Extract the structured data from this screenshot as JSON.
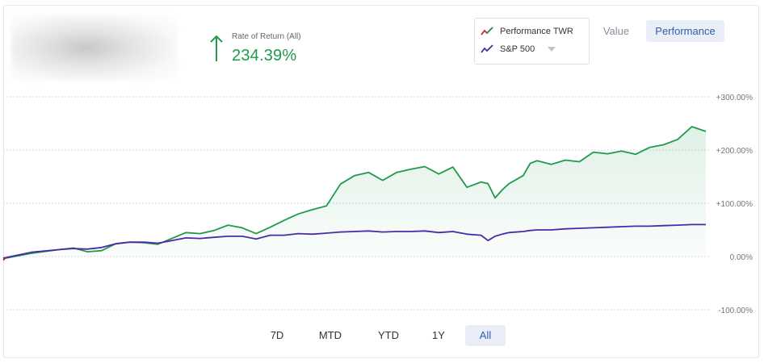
{
  "header": {
    "rate_label": "Rate of Return (All)",
    "rate_value": "234.39%",
    "rate_direction_icon": "arrow-up-icon",
    "rate_color": "#1f9a4c"
  },
  "legend": {
    "items": [
      {
        "label": "Performance TWR",
        "icon": "line-chart-icon",
        "colors": [
          "#1f9a4c",
          "#c62828"
        ]
      },
      {
        "label": "S&P 500",
        "icon": "line-chart-icon",
        "colors": [
          "#4b2aa8"
        ]
      }
    ],
    "dropdown_icon": "caret-down-icon"
  },
  "view_toggle": {
    "value_label": "Value",
    "performance_label": "Performance",
    "selected": "Performance"
  },
  "ranges": {
    "items": [
      "7D",
      "MTD",
      "YTD",
      "1Y",
      "All"
    ],
    "selected": "All"
  },
  "chart_data": {
    "type": "line",
    "ylim": [
      -100,
      300
    ],
    "y_ticks": [
      "+300.00%",
      "+200.00%",
      "+100.00%",
      "0.00%",
      "-100.00%"
    ],
    "y_tick_values": [
      300,
      200,
      100,
      0,
      -100
    ],
    "grid": true,
    "x": [
      0,
      0.04,
      0.08,
      0.1,
      0.12,
      0.14,
      0.16,
      0.18,
      0.2,
      0.22,
      0.24,
      0.26,
      0.28,
      0.3,
      0.32,
      0.34,
      0.36,
      0.38,
      0.4,
      0.42,
      0.44,
      0.46,
      0.48,
      0.5,
      0.52,
      0.54,
      0.56,
      0.58,
      0.6,
      0.62,
      0.64,
      0.66,
      0.68,
      0.69,
      0.7,
      0.71,
      0.72,
      0.74,
      0.75,
      0.76,
      0.78,
      0.8,
      0.82,
      0.84,
      0.86,
      0.88,
      0.9,
      0.92,
      0.94,
      0.96,
      0.98,
      1.0
    ],
    "series": [
      {
        "name": "Performance TWR",
        "color": "#1f9a4c",
        "area": true,
        "values": [
          -4,
          6,
          13,
          16,
          9,
          11,
          24,
          27,
          26,
          23,
          34,
          45,
          43,
          49,
          59,
          54,
          43,
          55,
          68,
          80,
          88,
          95,
          136,
          152,
          158,
          143,
          158,
          164,
          169,
          155,
          168,
          130,
          140,
          137,
          110,
          125,
          137,
          152,
          175,
          180,
          173,
          181,
          178,
          196,
          193,
          198,
          192,
          205,
          210,
          220,
          244,
          235
        ]
      },
      {
        "name": "S&P 500",
        "color": "#4b2aa8",
        "values": [
          -3,
          8,
          13,
          15,
          14,
          17,
          24,
          27,
          27,
          25,
          30,
          35,
          34,
          36,
          38,
          38,
          33,
          40,
          40,
          43,
          42,
          44,
          46,
          47,
          48,
          46,
          47,
          47,
          48,
          45,
          47,
          42,
          40,
          30,
          38,
          42,
          45,
          47,
          49,
          50,
          50,
          52,
          53,
          54,
          55,
          56,
          57,
          57,
          58,
          59,
          60,
          60
        ]
      }
    ]
  }
}
